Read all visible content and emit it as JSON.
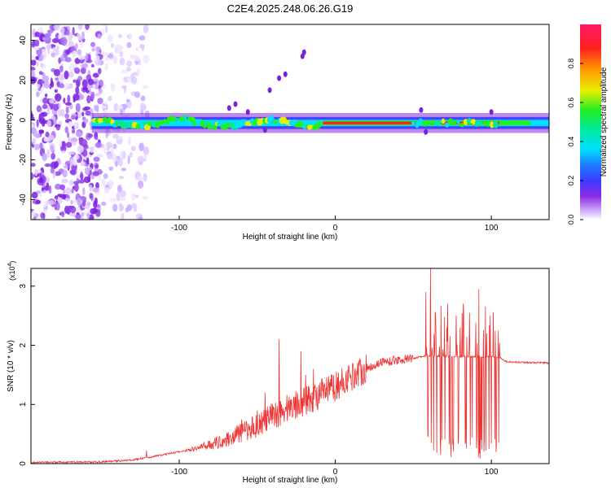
{
  "title": "C2E4.2025.248.06.26.G19",
  "chart_data": [
    {
      "type": "heatmap",
      "xlabel": "Height of straight line (km)",
      "ylabel": "Frequency (Hz)",
      "xlim": [
        -195,
        137
      ],
      "ylim": [
        -50,
        48
      ],
      "xticks": [
        -100,
        0,
        100
      ],
      "xtick_labels": [
        "-100",
        "0",
        "100"
      ],
      "yticks": [
        -40,
        -20,
        0,
        20,
        40
      ],
      "ytick_labels": [
        "-40",
        "-20",
        "0",
        "20",
        "40"
      ],
      "ridge_frequency_hz": -1.5,
      "noise_region_km": [
        -195,
        -120
      ],
      "colorbar": {
        "label": "Normalized spectral amplitude",
        "range": [
          0,
          1
        ],
        "ticks": [
          0.0,
          0.2,
          0.4,
          0.6,
          0.8
        ],
        "tick_labels": [
          "0.0",
          "0.2",
          "0.4",
          "0.6",
          "0.8"
        ]
      }
    },
    {
      "type": "line",
      "xlabel": "Height of straight line (km)",
      "ylabel": "SNR (10 * v/v)",
      "y_multiplier": "(x10",
      "y_multiplier_exp": "4",
      "y_multiplier_close": ")",
      "xlim": [
        -195,
        137
      ],
      "ylim": [
        0,
        3.3
      ],
      "xticks": [
        -100,
        0,
        100
      ],
      "xtick_labels": [
        "-100",
        "0",
        "100"
      ],
      "yticks": [
        0,
        1,
        2,
        3
      ],
      "ytick_labels": [
        "0",
        "1",
        "2",
        "3"
      ],
      "color": "#ee3333",
      "envelope": [
        [
          -195,
          0.02
        ],
        [
          -150,
          0.03
        ],
        [
          -130,
          0.06
        ],
        [
          -110,
          0.15
        ],
        [
          -90,
          0.25
        ],
        [
          -70,
          0.4
        ],
        [
          -50,
          0.65
        ],
        [
          -30,
          0.95
        ],
        [
          -15,
          1.1
        ],
        [
          0,
          1.3
        ],
        [
          15,
          1.55
        ],
        [
          30,
          1.72
        ],
        [
          50,
          1.78
        ],
        [
          58,
          1.82
        ],
        [
          105,
          1.8
        ],
        [
          110,
          1.72
        ],
        [
          137,
          1.7
        ]
      ],
      "spikes": [
        [
          -121,
          0.22
        ],
        [
          -63,
          0.65
        ],
        [
          -60,
          0.75
        ],
        [
          -50,
          0.9
        ],
        [
          -45,
          1.2
        ],
        [
          -36,
          2.1
        ],
        [
          -22,
          1.9
        ],
        [
          -19,
          1.5
        ],
        [
          -14,
          1.6
        ],
        [
          -2,
          1.5
        ],
        [
          58,
          2.9
        ],
        [
          61,
          3.3
        ],
        [
          64,
          2.55
        ],
        [
          72,
          2.7
        ],
        [
          80,
          2.3
        ],
        [
          86,
          2.55
        ],
        [
          92,
          2.95
        ],
        [
          97,
          2.2
        ]
      ],
      "dropout_region_km": [
        57,
        106
      ]
    }
  ]
}
